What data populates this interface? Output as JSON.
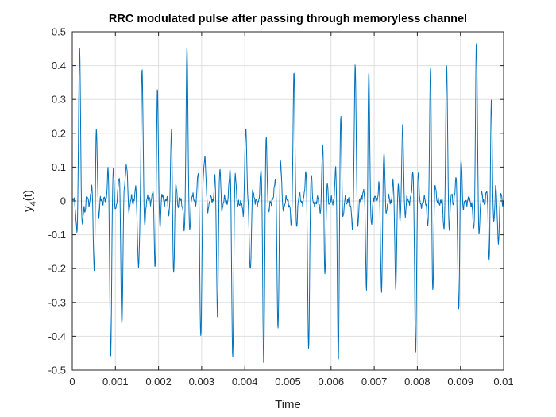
{
  "chart_data": {
    "type": "line",
    "title": "RRC modulated pulse after passing through memoryless channel",
    "xlabel": "Time",
    "ylabel": {
      "base": "y",
      "sub": "4",
      "suffix": "(t)"
    },
    "xlim": [
      0,
      0.01
    ],
    "ylim": [
      -0.5,
      0.5
    ],
    "xticks": [
      0,
      0.001,
      0.002,
      0.003,
      0.004,
      0.005,
      0.006,
      0.007,
      0.008,
      0.009,
      0.01
    ],
    "xtick_labels": [
      "0",
      "0.001",
      "0.002",
      "0.003",
      "0.004",
      "0.005",
      "0.006",
      "0.007",
      "0.008",
      "0.009",
      "0.01"
    ],
    "yticks": [
      -0.5,
      -0.4,
      -0.3,
      -0.2,
      -0.1,
      0,
      0.1,
      0.2,
      0.3,
      0.4,
      0.5
    ],
    "ytick_labels": [
      "-0.5",
      "-0.4",
      "-0.3",
      "-0.2",
      "-0.1",
      "0",
      "0.1",
      "0.2",
      "0.3",
      "0.4",
      "0.5"
    ],
    "grid": true,
    "legend": null,
    "line_color": "#0072BD",
    "pulses": [
      [
        0.00017,
        0.465
      ],
      [
        0.00029,
        -0.04
      ],
      [
        0.00052,
        -0.245
      ],
      [
        0.00055,
        0.245
      ],
      [
        0.00089,
        -0.455
      ],
      [
        0.00115,
        -0.385
      ],
      [
        0.00126,
        0.115
      ],
      [
        0.00153,
        -0.15
      ],
      [
        0.00162,
        0.4
      ],
      [
        0.00193,
        -0.17
      ],
      [
        0.00197,
        0.32
      ],
      [
        0.00231,
        0.23
      ],
      [
        0.00234,
        -0.245
      ],
      [
        0.00266,
        0.465
      ],
      [
        0.00298,
        -0.405
      ],
      [
        0.00308,
        0.135
      ],
      [
        0.00337,
        -0.4
      ],
      [
        0.00339,
        0.12
      ],
      [
        0.00372,
        -0.48
      ],
      [
        0.00402,
        0.215
      ],
      [
        0.00413,
        -0.225
      ],
      [
        0.00444,
        -0.475
      ],
      [
        0.00449,
        0.115
      ],
      [
        0.00477,
        -0.385
      ],
      [
        0.00483,
        0.05
      ],
      [
        0.00514,
        0.39
      ],
      [
        0.00548,
        -0.45
      ],
      [
        0.00582,
        0.19
      ],
      [
        0.00585,
        -0.245
      ],
      [
        0.00617,
        -0.44
      ],
      [
        0.00622,
        0.18
      ],
      [
        0.00656,
        0.41
      ],
      [
        0.00683,
        -0.245
      ],
      [
        0.00687,
        0.39
      ],
      [
        0.00717,
        -0.25
      ],
      [
        0.00722,
        0.1
      ],
      [
        0.0075,
        -0.25
      ],
      [
        0.00766,
        0.215
      ],
      [
        0.00796,
        -0.465
      ],
      [
        0.00831,
        0.395
      ],
      [
        0.00835,
        -0.255
      ],
      [
        0.00868,
        0.395
      ],
      [
        0.00896,
        -0.315
      ],
      [
        0.00901,
        0.075
      ],
      [
        0.00937,
        0.48
      ],
      [
        0.00968,
        -0.19
      ],
      [
        0.00971,
        0.33
      ],
      [
        0.00988,
        -0.12
      ]
    ]
  }
}
